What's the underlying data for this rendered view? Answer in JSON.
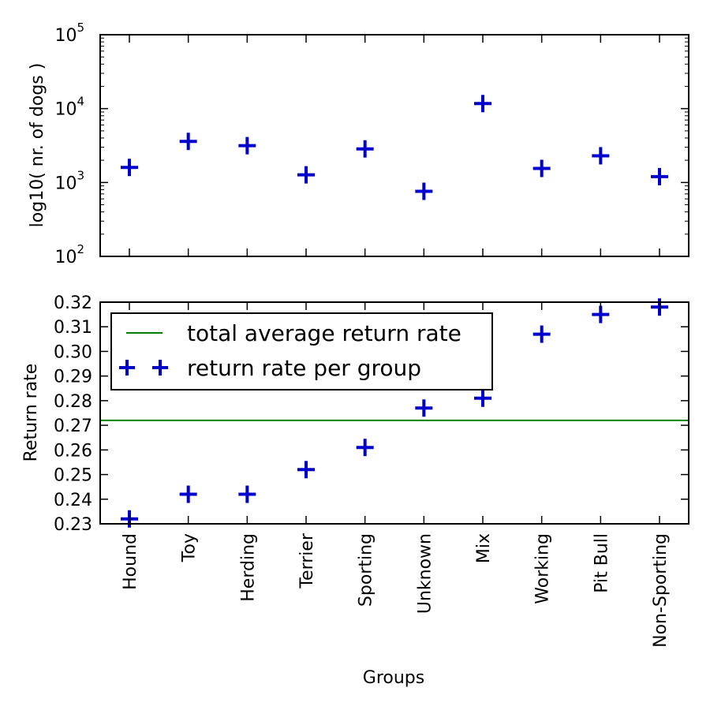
{
  "chart_data": [
    {
      "type": "scatter",
      "ylabel": "log10( nr. of dogs )",
      "yscale": "log",
      "ylim": [
        100,
        100000
      ],
      "yticks": [
        {
          "value": 100,
          "base": "10",
          "exp": "2"
        },
        {
          "value": 1000,
          "base": "10",
          "exp": "3"
        },
        {
          "value": 10000,
          "base": "10",
          "exp": "4"
        },
        {
          "value": 100000,
          "base": "10",
          "exp": "5"
        }
      ],
      "categories": [
        "Hound",
        "Toy",
        "Herding",
        "Terrier",
        "Sporting",
        "Unknown",
        "Mix",
        "Working",
        "Pit Bull",
        "Non-Sporting"
      ],
      "values": [
        1600,
        3600,
        3150,
        1270,
        2850,
        760,
        11700,
        1550,
        2300,
        1200
      ],
      "marker_color": "#0000cc",
      "grid": false
    },
    {
      "type": "scatter",
      "xlabel": "Groups",
      "ylabel": "Return rate",
      "ylim": [
        0.23,
        0.32
      ],
      "yticks": [
        "0.23",
        "0.24",
        "0.25",
        "0.26",
        "0.27",
        "0.28",
        "0.29",
        "0.30",
        "0.31",
        "0.32"
      ],
      "categories": [
        "Hound",
        "Toy",
        "Herding",
        "Terrier",
        "Sporting",
        "Unknown",
        "Mix",
        "Working",
        "Pit Bull",
        "Non-Sporting"
      ],
      "series": [
        {
          "name": "return rate per group",
          "values": [
            0.232,
            0.242,
            0.242,
            0.252,
            0.261,
            0.277,
            0.281,
            0.307,
            0.315,
            0.318
          ],
          "color": "#0000cc"
        }
      ],
      "hline": {
        "name": "total average return rate",
        "value": 0.272,
        "color": "#008000"
      },
      "legend": {
        "position": "upper-left"
      },
      "grid": false
    }
  ]
}
